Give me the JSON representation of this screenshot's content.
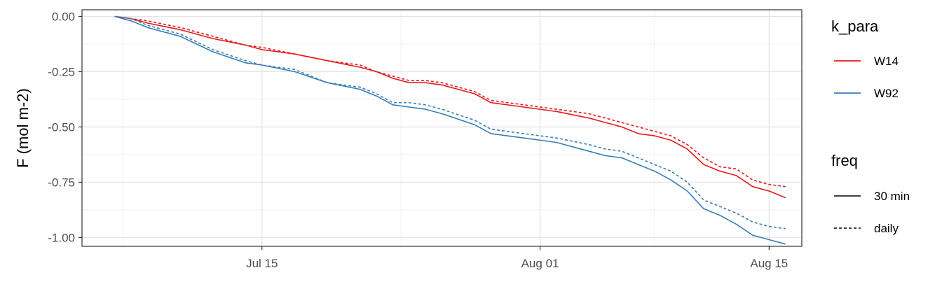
{
  "chart_data": {
    "type": "line",
    "xlabel": "",
    "ylabel": "F (mol m-2)",
    "x_ticks": [
      "Jul 15",
      "Aug 01",
      "Aug 15"
    ],
    "y_ticks": [
      "0.00",
      "-0.25",
      "-0.50",
      "-0.75",
      "-1.00"
    ],
    "ylim": [
      -1.04,
      0.03
    ],
    "xlim": [
      "2025-07-04",
      "2025-08-17"
    ],
    "grid": true,
    "legend_position": "right",
    "legends": [
      {
        "title": "k_para",
        "entries": [
          {
            "label": "W14",
            "color": "#e41a1c"
          },
          {
            "label": "W92",
            "color": "#377eb8"
          }
        ]
      },
      {
        "title": "freq",
        "entries": [
          {
            "label": "30 min",
            "linetype": "solid"
          },
          {
            "label": "daily",
            "linetype": "dashed"
          }
        ]
      }
    ],
    "series": [
      {
        "k_para": "W14",
        "freq": "30 min",
        "color": "#e41a1c",
        "linetype": "solid",
        "x": [
          "2025-07-06",
          "2025-07-07",
          "2025-07-08",
          "2025-07-10",
          "2025-07-12",
          "2025-07-14",
          "2025-07-15",
          "2025-07-17",
          "2025-07-19",
          "2025-07-21",
          "2025-07-22",
          "2025-07-23",
          "2025-07-24",
          "2025-07-25",
          "2025-07-26",
          "2025-07-28",
          "2025-07-29",
          "2025-07-31",
          "2025-08-02",
          "2025-08-04",
          "2025-08-05",
          "2025-08-06",
          "2025-08-07",
          "2025-08-08",
          "2025-08-09",
          "2025-08-10",
          "2025-08-11",
          "2025-08-12",
          "2025-08-13",
          "2025-08-14",
          "2025-08-15",
          "2025-08-16"
        ],
        "y": [
          0.0,
          -0.01,
          -0.03,
          -0.06,
          -0.1,
          -0.13,
          -0.15,
          -0.17,
          -0.2,
          -0.23,
          -0.25,
          -0.28,
          -0.3,
          -0.3,
          -0.31,
          -0.35,
          -0.39,
          -0.41,
          -0.43,
          -0.46,
          -0.48,
          -0.5,
          -0.53,
          -0.54,
          -0.56,
          -0.6,
          -0.67,
          -0.7,
          -0.72,
          -0.77,
          -0.79,
          -0.82
        ]
      },
      {
        "k_para": "W14",
        "freq": "daily",
        "color": "#e41a1c",
        "linetype": "dashed",
        "x": [
          "2025-07-06",
          "2025-07-07",
          "2025-07-08",
          "2025-07-10",
          "2025-07-12",
          "2025-07-14",
          "2025-07-15",
          "2025-07-17",
          "2025-07-19",
          "2025-07-21",
          "2025-07-22",
          "2025-07-23",
          "2025-07-24",
          "2025-07-25",
          "2025-07-26",
          "2025-07-28",
          "2025-07-29",
          "2025-07-31",
          "2025-08-02",
          "2025-08-04",
          "2025-08-05",
          "2025-08-06",
          "2025-08-07",
          "2025-08-08",
          "2025-08-09",
          "2025-08-10",
          "2025-08-11",
          "2025-08-12",
          "2025-08-13",
          "2025-08-14",
          "2025-08-15",
          "2025-08-16"
        ],
        "y": [
          0.0,
          -0.01,
          -0.02,
          -0.05,
          -0.09,
          -0.13,
          -0.14,
          -0.17,
          -0.2,
          -0.22,
          -0.25,
          -0.27,
          -0.29,
          -0.29,
          -0.3,
          -0.34,
          -0.38,
          -0.4,
          -0.42,
          -0.44,
          -0.46,
          -0.48,
          -0.5,
          -0.52,
          -0.54,
          -0.58,
          -0.64,
          -0.68,
          -0.69,
          -0.74,
          -0.76,
          -0.77
        ]
      },
      {
        "k_para": "W92",
        "freq": "30 min",
        "color": "#377eb8",
        "linetype": "solid",
        "x": [
          "2025-07-06",
          "2025-07-07",
          "2025-07-08",
          "2025-07-10",
          "2025-07-12",
          "2025-07-14",
          "2025-07-15",
          "2025-07-17",
          "2025-07-19",
          "2025-07-21",
          "2025-07-22",
          "2025-07-23",
          "2025-07-24",
          "2025-07-25",
          "2025-07-26",
          "2025-07-28",
          "2025-07-29",
          "2025-07-31",
          "2025-08-02",
          "2025-08-04",
          "2025-08-05",
          "2025-08-06",
          "2025-08-07",
          "2025-08-08",
          "2025-08-09",
          "2025-08-10",
          "2025-08-11",
          "2025-08-12",
          "2025-08-13",
          "2025-08-14",
          "2025-08-15",
          "2025-08-16"
        ],
        "y": [
          0.0,
          -0.02,
          -0.05,
          -0.09,
          -0.16,
          -0.21,
          -0.22,
          -0.25,
          -0.3,
          -0.33,
          -0.36,
          -0.4,
          -0.41,
          -0.42,
          -0.44,
          -0.49,
          -0.53,
          -0.55,
          -0.57,
          -0.61,
          -0.63,
          -0.64,
          -0.67,
          -0.7,
          -0.74,
          -0.79,
          -0.87,
          -0.9,
          -0.94,
          -0.99,
          -1.01,
          -1.03
        ]
      },
      {
        "k_para": "W92",
        "freq": "daily",
        "color": "#377eb8",
        "linetype": "dashed",
        "x": [
          "2025-07-06",
          "2025-07-07",
          "2025-07-08",
          "2025-07-10",
          "2025-07-12",
          "2025-07-14",
          "2025-07-15",
          "2025-07-17",
          "2025-07-19",
          "2025-07-21",
          "2025-07-22",
          "2025-07-23",
          "2025-07-24",
          "2025-07-25",
          "2025-07-26",
          "2025-07-28",
          "2025-07-29",
          "2025-07-31",
          "2025-08-02",
          "2025-08-04",
          "2025-08-05",
          "2025-08-06",
          "2025-08-07",
          "2025-08-08",
          "2025-08-09",
          "2025-08-10",
          "2025-08-11",
          "2025-08-12",
          "2025-08-13",
          "2025-08-14",
          "2025-08-15",
          "2025-08-16"
        ],
        "y": [
          0.0,
          -0.01,
          -0.04,
          -0.08,
          -0.15,
          -0.2,
          -0.22,
          -0.24,
          -0.3,
          -0.32,
          -0.35,
          -0.39,
          -0.39,
          -0.4,
          -0.42,
          -0.47,
          -0.51,
          -0.53,
          -0.55,
          -0.58,
          -0.6,
          -0.61,
          -0.64,
          -0.67,
          -0.7,
          -0.75,
          -0.83,
          -0.86,
          -0.89,
          -0.93,
          -0.95,
          -0.96
        ]
      }
    ]
  }
}
